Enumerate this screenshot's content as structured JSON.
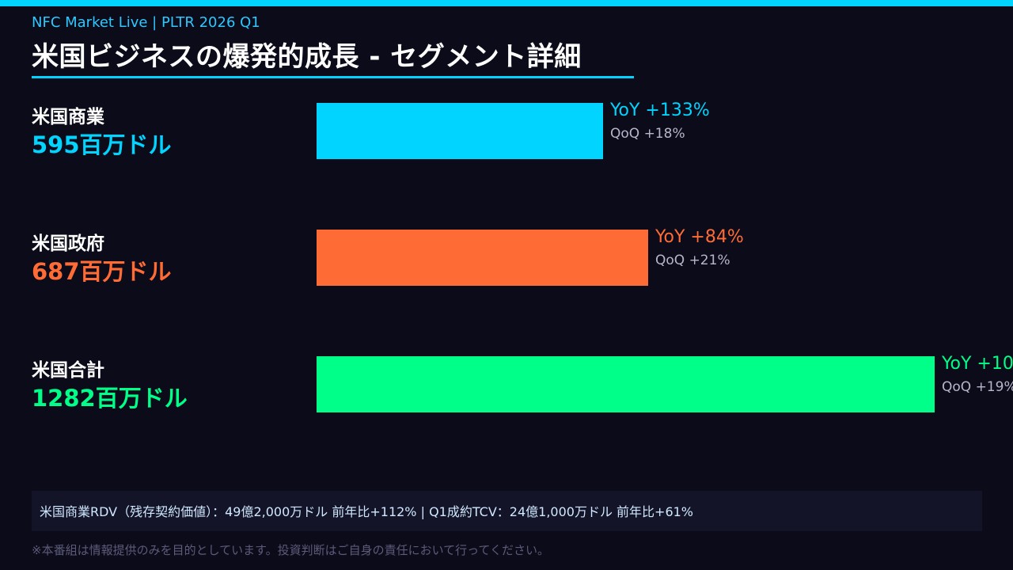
{
  "header": {
    "tag": "NFC Market Live  |  PLTR 2026 Q1",
    "title": "米国ビジネスの爆発的成長 - セグメント詳細"
  },
  "colors": {
    "accent": "#00d4ff",
    "commercial": "#00d4ff",
    "government": "#ff6b35",
    "total": "#00ff88"
  },
  "chart_data": {
    "type": "bar",
    "orientation": "horizontal",
    "unit": "百万ドル",
    "xlim": [
      0,
      1282
    ],
    "categories": [
      "米国商業",
      "米国政府",
      "米国合計"
    ],
    "values": [
      595,
      687,
      1282
    ],
    "value_labels": [
      "595百万ドル",
      "687百万ドル",
      "1282百万ドル"
    ],
    "yoy_labels": [
      "YoY +133%",
      "YoY +84%",
      "YoY +10"
    ],
    "qoq_labels": [
      "QoQ +18%",
      "QoQ +21%",
      "QoQ +19%"
    ]
  },
  "footer": {
    "info": "米国商業RDV（残存契約価値）：49億2,000万ドル  前年比+112%  |  Q1成約TCV：24億1,000万ドル  前年比+61%",
    "disclaimer": "※本番組は情報提供のみを目的としています。投資判断はご自身の責任において行ってください。"
  }
}
